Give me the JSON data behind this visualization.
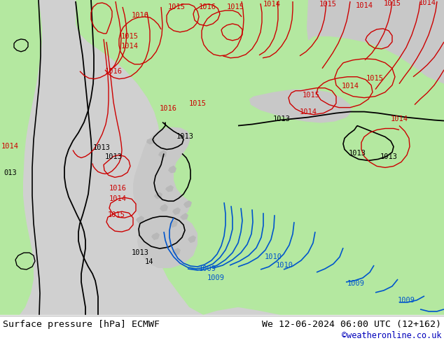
{
  "title_left": "Surface pressure [hPa] ECMWF",
  "title_right": "We 12-06-2024 06:00 UTC (12+162)",
  "copyright": "©weatheronline.co.uk",
  "land_gray": "#c8c8c8",
  "sea_gray": "#c0c0c0",
  "green": "#b4e8a0",
  "black": "#000000",
  "red": "#cc0000",
  "blue": "#0055cc",
  "footer_bg": "#ffffff",
  "copyright_color": "#0000bb",
  "lfs": 7.5,
  "footer_fs": 9.5
}
